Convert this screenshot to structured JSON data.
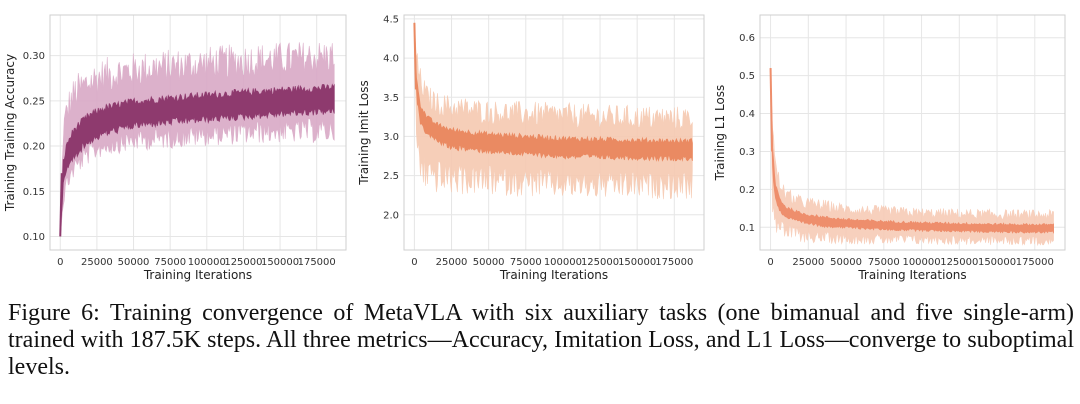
{
  "caption": {
    "label": "Figure 6:",
    "text": "Training convergence of MetaVLA with six auxiliary tasks (one bimanual and five single-arm) trained with 187.5K steps. All three metrics—Accuracy, Imitation Loss, and L1 Loss—converge to suboptimal levels."
  },
  "chart_data": [
    {
      "type": "line",
      "ylabel": "Training Training Accuracy",
      "xlabel": "Training Iterations",
      "xlim": [
        -7000,
        195000
      ],
      "ylim": [
        0.085,
        0.345
      ],
      "xticks": [
        0,
        25000,
        50000,
        75000,
        100000,
        125000,
        150000,
        175000
      ],
      "yticks": [
        0.1,
        0.15,
        0.2,
        0.25,
        0.3
      ],
      "ytick_labels": [
        "0.10",
        "0.15",
        "0.20",
        "0.25",
        "0.30"
      ],
      "color": "#8e3a6e",
      "band_color": "#d9a9c6",
      "x": [
        0,
        2000,
        5000,
        10000,
        20000,
        30000,
        50000,
        75000,
        100000,
        125000,
        150000,
        175000,
        187500
      ],
      "mean": [
        0.1,
        0.17,
        0.19,
        0.205,
        0.22,
        0.228,
        0.236,
        0.24,
        0.243,
        0.246,
        0.249,
        0.251,
        0.252
      ],
      "lower": [
        0.1,
        0.14,
        0.16,
        0.175,
        0.19,
        0.198,
        0.204,
        0.207,
        0.21,
        0.212,
        0.214,
        0.214,
        0.215
      ],
      "upper": [
        0.1,
        0.22,
        0.245,
        0.262,
        0.275,
        0.282,
        0.288,
        0.292,
        0.295,
        0.298,
        0.3,
        0.302,
        0.303
      ]
    },
    {
      "type": "line",
      "ylabel": "Training Imit Loss",
      "xlabel": "Training Iterations",
      "xlim": [
        -7000,
        195000
      ],
      "ylim": [
        1.55,
        4.55
      ],
      "xticks": [
        0,
        25000,
        50000,
        75000,
        100000,
        125000,
        150000,
        175000
      ],
      "yticks": [
        2.0,
        2.5,
        3.0,
        3.5,
        4.0,
        4.5
      ],
      "ytick_labels": [
        "2.0",
        "2.5",
        "3.0",
        "3.5",
        "4.0",
        "4.5"
      ],
      "color": "#ea8a62",
      "band_color": "#f6c9b1",
      "x": [
        0,
        1500,
        4000,
        8000,
        15000,
        25000,
        50000,
        75000,
        100000,
        125000,
        150000,
        175000,
        187500
      ],
      "mean": [
        4.45,
        3.6,
        3.3,
        3.15,
        3.05,
        2.97,
        2.92,
        2.89,
        2.86,
        2.85,
        2.84,
        2.83,
        2.83
      ],
      "lower": [
        4.45,
        2.9,
        2.6,
        2.5,
        2.45,
        2.42,
        2.4,
        2.38,
        2.36,
        2.35,
        2.35,
        2.34,
        2.34
      ],
      "upper": [
        4.45,
        4.0,
        3.75,
        3.55,
        3.45,
        3.4,
        3.34,
        3.32,
        3.3,
        3.28,
        3.27,
        3.26,
        3.26
      ]
    },
    {
      "type": "line",
      "ylabel": "Training L1 Loss",
      "xlabel": "Training Iterations",
      "xlim": [
        -7000,
        195000
      ],
      "ylim": [
        0.04,
        0.66
      ],
      "xticks": [
        0,
        25000,
        50000,
        75000,
        100000,
        125000,
        150000,
        175000
      ],
      "yticks": [
        0.1,
        0.2,
        0.3,
        0.4,
        0.5,
        0.6
      ],
      "ytick_labels": [
        "0.1",
        "0.2",
        "0.3",
        "0.4",
        "0.5",
        "0.6"
      ],
      "color": "#ee8e6c",
      "band_color": "#f7cbb6",
      "x": [
        0,
        1000,
        3000,
        6000,
        10000,
        20000,
        35000,
        50000,
        75000,
        100000,
        125000,
        150000,
        175000,
        187500
      ],
      "mean": [
        0.52,
        0.3,
        0.2,
        0.16,
        0.14,
        0.125,
        0.115,
        0.11,
        0.105,
        0.102,
        0.1,
        0.098,
        0.097,
        0.097
      ],
      "lower": [
        0.52,
        0.18,
        0.11,
        0.09,
        0.085,
        0.075,
        0.07,
        0.068,
        0.066,
        0.065,
        0.064,
        0.063,
        0.063,
        0.063
      ],
      "upper": [
        0.52,
        0.42,
        0.27,
        0.22,
        0.19,
        0.17,
        0.16,
        0.15,
        0.145,
        0.14,
        0.138,
        0.136,
        0.135,
        0.135
      ]
    }
  ]
}
